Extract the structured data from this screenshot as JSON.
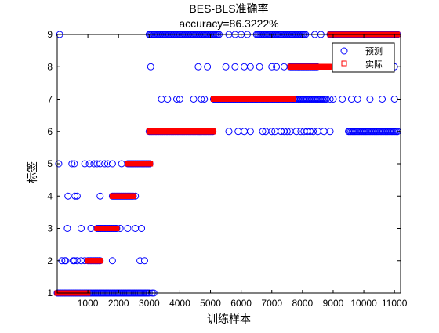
{
  "chart_data": {
    "type": "scatter",
    "title": "BES-BLS准确率",
    "subtitle": "accuracy=86.3222%",
    "xlabel": "训练样本",
    "ylabel": "标签",
    "xlim": [
      0,
      11200
    ],
    "ylim": [
      1,
      9
    ],
    "xticks": [
      1000,
      2000,
      3000,
      4000,
      5000,
      6000,
      7000,
      8000,
      9000,
      10000,
      11000
    ],
    "yticks": [
      1,
      2,
      3,
      4,
      5,
      6,
      7,
      8,
      9
    ],
    "xtick_labels": [
      "1000",
      "2000",
      "3000",
      "4000",
      "5000",
      "6000",
      "7000",
      "8000",
      "9000",
      "10000",
      "11000"
    ],
    "ytick_labels": [
      "1",
      "2",
      "3",
      "4",
      "5",
      "6",
      "7",
      "8",
      "9"
    ],
    "grid": false,
    "legend_position": "top-right",
    "series": [
      {
        "name": "预测",
        "marker": "circle",
        "color": "#0000ff",
        "runs": [
          {
            "y": 1,
            "x_start": 0,
            "x_end": 3000
          },
          {
            "y": 2,
            "x_start": 1000,
            "x_end": 1400
          },
          {
            "y": 3,
            "x_start": 1300,
            "x_end": 1950
          },
          {
            "y": 4,
            "x_start": 1800,
            "x_end": 2500
          },
          {
            "y": 5,
            "x_start": 2300,
            "x_end": 3050
          },
          {
            "y": 6,
            "x_start": 3000,
            "x_end": 5100
          },
          {
            "y": 6,
            "x_start": 9500,
            "x_end": 11100
          },
          {
            "y": 7,
            "x_start": 5100,
            "x_end": 7700
          },
          {
            "y": 7,
            "x_start": 7700,
            "x_end": 8800
          },
          {
            "y": 8,
            "x_start": 7600,
            "x_end": 8500
          },
          {
            "y": 9,
            "x_start": 3000,
            "x_end": 5300
          },
          {
            "y": 9,
            "x_start": 6500,
            "x_end": 8100
          },
          {
            "y": 9,
            "x_start": 8900,
            "x_end": 11100
          }
        ],
        "points": [
          {
            "x": 80,
            "y": 9
          },
          {
            "x": 3050,
            "y": 8
          },
          {
            "x": 50,
            "y": 5
          },
          {
            "x": 480,
            "y": 5
          },
          {
            "x": 560,
            "y": 5
          },
          {
            "x": 900,
            "y": 5
          },
          {
            "x": 1050,
            "y": 5
          },
          {
            "x": 1200,
            "y": 5
          },
          {
            "x": 1300,
            "y": 5
          },
          {
            "x": 1400,
            "y": 5
          },
          {
            "x": 1550,
            "y": 5
          },
          {
            "x": 1650,
            "y": 5
          },
          {
            "x": 1800,
            "y": 5
          },
          {
            "x": 2100,
            "y": 5
          },
          {
            "x": 350,
            "y": 4
          },
          {
            "x": 580,
            "y": 4
          },
          {
            "x": 650,
            "y": 4
          },
          {
            "x": 1400,
            "y": 4
          },
          {
            "x": 2550,
            "y": 4
          },
          {
            "x": 330,
            "y": 3
          },
          {
            "x": 780,
            "y": 3
          },
          {
            "x": 1100,
            "y": 3
          },
          {
            "x": 2050,
            "y": 3
          },
          {
            "x": 2300,
            "y": 3
          },
          {
            "x": 2550,
            "y": 3
          },
          {
            "x": 2750,
            "y": 3
          },
          {
            "x": 150,
            "y": 2
          },
          {
            "x": 250,
            "y": 2
          },
          {
            "x": 280,
            "y": 2
          },
          {
            "x": 520,
            "y": 2
          },
          {
            "x": 560,
            "y": 2
          },
          {
            "x": 650,
            "y": 2
          },
          {
            "x": 780,
            "y": 2
          },
          {
            "x": 900,
            "y": 2
          },
          {
            "x": 1800,
            "y": 2
          },
          {
            "x": 2700,
            "y": 2
          },
          {
            "x": 2850,
            "y": 2
          },
          {
            "x": 3100,
            "y": 1
          },
          {
            "x": 3150,
            "y": 1
          },
          {
            "x": 3400,
            "y": 7
          },
          {
            "x": 3600,
            "y": 7
          },
          {
            "x": 3900,
            "y": 7
          },
          {
            "x": 4000,
            "y": 7
          },
          {
            "x": 4450,
            "y": 7
          },
          {
            "x": 4700,
            "y": 7
          },
          {
            "x": 4800,
            "y": 7
          },
          {
            "x": 8900,
            "y": 7
          },
          {
            "x": 9000,
            "y": 7
          },
          {
            "x": 9300,
            "y": 7
          },
          {
            "x": 9600,
            "y": 7
          },
          {
            "x": 9800,
            "y": 7
          },
          {
            "x": 10200,
            "y": 7
          },
          {
            "x": 10600,
            "y": 7
          },
          {
            "x": 11000,
            "y": 7
          },
          {
            "x": 4600,
            "y": 8
          },
          {
            "x": 4900,
            "y": 8
          },
          {
            "x": 5500,
            "y": 8
          },
          {
            "x": 5800,
            "y": 8
          },
          {
            "x": 6100,
            "y": 8
          },
          {
            "x": 6300,
            "y": 8
          },
          {
            "x": 6600,
            "y": 8
          },
          {
            "x": 7000,
            "y": 8
          },
          {
            "x": 7150,
            "y": 8
          },
          {
            "x": 7400,
            "y": 8
          },
          {
            "x": 9100,
            "y": 8
          },
          {
            "x": 9200,
            "y": 8
          },
          {
            "x": 9400,
            "y": 8
          },
          {
            "x": 9700,
            "y": 8
          },
          {
            "x": 9900,
            "y": 8
          },
          {
            "x": 10400,
            "y": 8
          },
          {
            "x": 10800,
            "y": 8
          },
          {
            "x": 11000,
            "y": 8
          },
          {
            "x": 5600,
            "y": 9
          },
          {
            "x": 5800,
            "y": 9
          },
          {
            "x": 6000,
            "y": 9
          },
          {
            "x": 6200,
            "y": 9
          },
          {
            "x": 8400,
            "y": 9
          },
          {
            "x": 8600,
            "y": 9
          },
          {
            "x": 5600,
            "y": 6
          },
          {
            "x": 5900,
            "y": 6
          },
          {
            "x": 6100,
            "y": 6
          },
          {
            "x": 6300,
            "y": 6
          },
          {
            "x": 6700,
            "y": 6
          },
          {
            "x": 6800,
            "y": 6
          },
          {
            "x": 7000,
            "y": 6
          },
          {
            "x": 7100,
            "y": 6
          },
          {
            "x": 7300,
            "y": 6
          },
          {
            "x": 7400,
            "y": 6
          },
          {
            "x": 7500,
            "y": 6
          },
          {
            "x": 7600,
            "y": 6
          },
          {
            "x": 7800,
            "y": 6
          },
          {
            "x": 7950,
            "y": 6
          },
          {
            "x": 8050,
            "y": 6
          },
          {
            "x": 8150,
            "y": 6
          },
          {
            "x": 8250,
            "y": 6
          },
          {
            "x": 8350,
            "y": 6
          },
          {
            "x": 8500,
            "y": 6
          },
          {
            "x": 8700,
            "y": 6
          },
          {
            "x": 8900,
            "y": 6
          }
        ]
      },
      {
        "name": "实际",
        "marker": "square",
        "color": "#ff0000",
        "runs": [
          {
            "y": 1,
            "x_start": 0,
            "x_end": 1000
          },
          {
            "y": 2,
            "x_start": 1000,
            "x_end": 1400
          },
          {
            "y": 3,
            "x_start": 1300,
            "x_end": 1950
          },
          {
            "y": 4,
            "x_start": 1800,
            "x_end": 2500
          },
          {
            "y": 5,
            "x_start": 2300,
            "x_end": 3050
          },
          {
            "y": 6,
            "x_start": 3000,
            "x_end": 5100
          },
          {
            "y": 7,
            "x_start": 5100,
            "x_end": 7700
          },
          {
            "y": 8,
            "x_start": 7600,
            "x_end": 8900
          },
          {
            "y": 9,
            "x_start": 8900,
            "x_end": 11100
          }
        ]
      }
    ]
  }
}
